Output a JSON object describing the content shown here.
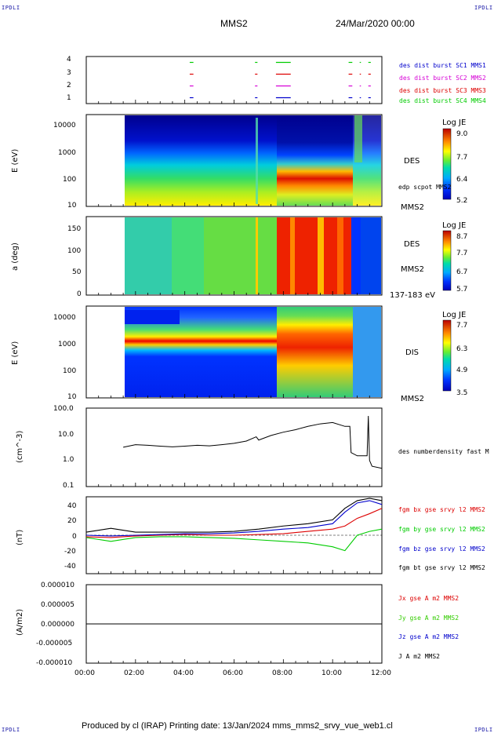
{
  "corners": {
    "tl": "IPDLI",
    "tr": "IPDLI",
    "bl": "IPDLI",
    "br": "IPDLI"
  },
  "header": {
    "mission": "MMS2",
    "datetime": "24/Mar/2020 00:00"
  },
  "footer": "Produced by cl (IRAP)   Printing date: 13/Jan/2024   mms_mms2_srvy_vue_web1.cl",
  "time_axis": {
    "labels": [
      "00:00",
      "02:00",
      "04:00",
      "06:00",
      "08:00",
      "10:00",
      "12:00"
    ],
    "hours": [
      0,
      2,
      4,
      6,
      8,
      10,
      12
    ]
  },
  "colors": {
    "blue": "#0000cc",
    "magenta": "#d600d6",
    "red": "#dd0000",
    "green": "#00cc00",
    "black": "#000000"
  },
  "chart_data": [
    {
      "type": "scatter",
      "name": "burst-availability",
      "ylim": [
        0.5,
        4.5
      ],
      "yticks": [
        "1",
        "2",
        "3",
        "4"
      ],
      "series": [
        {
          "name": "des dist burst SC1 MMS1",
          "level": 1,
          "color": "#0000cc",
          "intervals": [
            [
              4.2,
              4.35
            ],
            [
              6.85,
              6.95
            ],
            [
              7.7,
              8.3
            ],
            [
              10.65,
              10.8
            ],
            [
              11.1,
              11.15
            ],
            [
              11.45,
              11.55
            ]
          ]
        },
        {
          "name": "des dist burst SC2 MMS2",
          "level": 2,
          "color": "#d600d6",
          "intervals": [
            [
              4.2,
              4.35
            ],
            [
              6.85,
              6.95
            ],
            [
              7.7,
              8.3
            ],
            [
              10.65,
              10.8
            ],
            [
              11.1,
              11.15
            ],
            [
              11.45,
              11.55
            ]
          ]
        },
        {
          "name": "des dist burst SC3 MMS3",
          "level": 3,
          "color": "#dd0000",
          "intervals": [
            [
              4.2,
              4.35
            ],
            [
              6.85,
              6.95
            ],
            [
              7.7,
              8.3
            ],
            [
              10.65,
              10.8
            ],
            [
              11.1,
              11.15
            ],
            [
              11.45,
              11.55
            ]
          ]
        },
        {
          "name": "des dist burst SC4 MMS4",
          "level": 4,
          "color": "#00cc00",
          "intervals": [
            [
              4.2,
              4.35
            ],
            [
              6.85,
              6.95
            ],
            [
              7.7,
              8.3
            ],
            [
              10.65,
              10.8
            ],
            [
              11.1,
              11.15
            ],
            [
              11.45,
              11.55
            ]
          ]
        }
      ]
    },
    {
      "type": "heatmap",
      "name": "des-energy",
      "ylabel": "E (eV)",
      "yscale": "log",
      "ylim": [
        10,
        30000
      ],
      "yticks": [
        "10",
        "100",
        "1000",
        "10000"
      ],
      "right_label": "DES",
      "right_sub": "edp scpot MMS2",
      "right_bottom": "MMS2",
      "colorbar": {
        "title": "Log JE",
        "ticks": [
          "9.0",
          "7.7",
          "6.4",
          "5.2"
        ]
      },
      "data_start_hour": 1.5
    },
    {
      "type": "heatmap",
      "name": "des-pitch",
      "ylabel": "a (deg)",
      "ylim": [
        0,
        180
      ],
      "yticks": [
        "0",
        "50",
        "100",
        "150"
      ],
      "right_label": "DES",
      "right_sub": "MMS2",
      "right_bottom": "137-183 eV",
      "colorbar": {
        "title": "Log JE",
        "ticks": [
          "8.7",
          "7.7",
          "6.7",
          "5.7"
        ]
      },
      "data_start_hour": 1.5
    },
    {
      "type": "heatmap",
      "name": "dis-energy",
      "ylabel": "E (eV)",
      "yscale": "log",
      "ylim": [
        10,
        30000
      ],
      "yticks": [
        "10",
        "100",
        "1000",
        "10000"
      ],
      "right_label": "DIS",
      "right_bottom": "MMS2",
      "colorbar": {
        "title": "Log JE",
        "ticks": [
          "7.7",
          "6.3",
          "4.9",
          "3.5"
        ]
      },
      "data_start_hour": 1.5
    },
    {
      "type": "line",
      "name": "density",
      "ylabel": "(cm^-3)",
      "yscale": "log",
      "ylim": [
        0.1,
        100
      ],
      "yticks": [
        "0.1",
        "1.0",
        "10.0",
        "100.0"
      ],
      "series": [
        {
          "name": "des numberdensity fast M",
          "color": "#000000",
          "x": [
            1.5,
            2.0,
            2.5,
            3.0,
            3.5,
            4.0,
            4.5,
            5.0,
            5.5,
            6.0,
            6.5,
            6.9,
            7.0,
            7.5,
            8.0,
            8.5,
            9.0,
            9.5,
            10.0,
            10.5,
            10.7,
            10.75,
            11.0,
            11.4,
            11.45,
            11.5,
            11.6,
            12.0
          ],
          "y": [
            3.2,
            4.0,
            3.8,
            3.5,
            3.3,
            3.5,
            3.8,
            3.6,
            4.0,
            4.5,
            5.5,
            8.0,
            6.0,
            9.0,
            12.0,
            15.0,
            20.0,
            25.0,
            28.0,
            20.0,
            20.0,
            2.0,
            1.5,
            1.5,
            50.0,
            1.0,
            0.6,
            0.5
          ]
        }
      ]
    },
    {
      "type": "line",
      "name": "magnetic-field",
      "ylabel": "(nT)",
      "ylim": [
        -50,
        50
      ],
      "yticks": [
        "-40",
        "-20",
        "0",
        "20",
        "40"
      ],
      "series": [
        {
          "name": "fgm bx gse srvy l2 MMS2",
          "color": "#dd0000",
          "x": [
            0,
            1,
            2,
            3,
            4,
            5,
            6,
            7,
            8,
            9,
            10,
            10.5,
            11,
            11.5,
            12
          ],
          "y": [
            -2,
            -3,
            -1,
            0,
            1,
            0,
            0,
            1,
            2,
            5,
            8,
            12,
            22,
            28,
            35
          ]
        },
        {
          "name": "fgm by gse srvy l2 MMS2",
          "color": "#00cc00",
          "x": [
            0,
            1,
            2,
            3,
            4,
            5,
            6,
            7,
            8,
            9,
            10,
            10.5,
            11,
            11.5,
            12
          ],
          "y": [
            -3,
            -8,
            -3,
            -2,
            -2,
            -3,
            -4,
            -6,
            -8,
            -10,
            -15,
            -20,
            0,
            5,
            8
          ]
        },
        {
          "name": "fgm bz gse srvy l2 MMS2",
          "color": "#0000cc",
          "x": [
            0,
            1,
            2,
            3,
            4,
            5,
            6,
            7,
            8,
            9,
            10,
            10.5,
            11,
            11.5,
            12
          ],
          "y": [
            0,
            -1,
            0,
            1,
            2,
            2,
            3,
            5,
            8,
            10,
            15,
            30,
            42,
            45,
            40
          ]
        },
        {
          "name": "fgm bt gse srvy l2 MMS2",
          "color": "#000000",
          "x": [
            0,
            1,
            2,
            3,
            4,
            5,
            6,
            7,
            8,
            9,
            10,
            10.5,
            11,
            11.5,
            12
          ],
          "y": [
            4,
            9,
            4,
            4,
            4,
            4,
            5,
            8,
            12,
            15,
            20,
            35,
            45,
            48,
            45
          ]
        }
      ]
    },
    {
      "type": "line",
      "name": "current-density",
      "ylabel": "(A/m2)",
      "ylim": [
        -1e-05,
        1e-05
      ],
      "yticks": [
        "-0.000010",
        "-0.000005",
        "0.000000",
        "0.000005",
        "0.000010"
      ],
      "series": [
        {
          "name": "Jx gse A m2 MMS2",
          "color": "#dd0000",
          "x": [
            0,
            12
          ],
          "y": [
            0,
            0
          ]
        },
        {
          "name": "Jy gse A m2 MMS2",
          "color": "#00cc00",
          "x": [
            0,
            12
          ],
          "y": [
            0,
            0
          ]
        },
        {
          "name": "Jz gse A m2 MMS2",
          "color": "#0000cc",
          "x": [
            0,
            12
          ],
          "y": [
            0,
            0
          ]
        },
        {
          "name": "J A m2 MMS2",
          "color": "#000000",
          "x": [
            0,
            12
          ],
          "y": [
            0,
            0
          ]
        }
      ]
    }
  ]
}
